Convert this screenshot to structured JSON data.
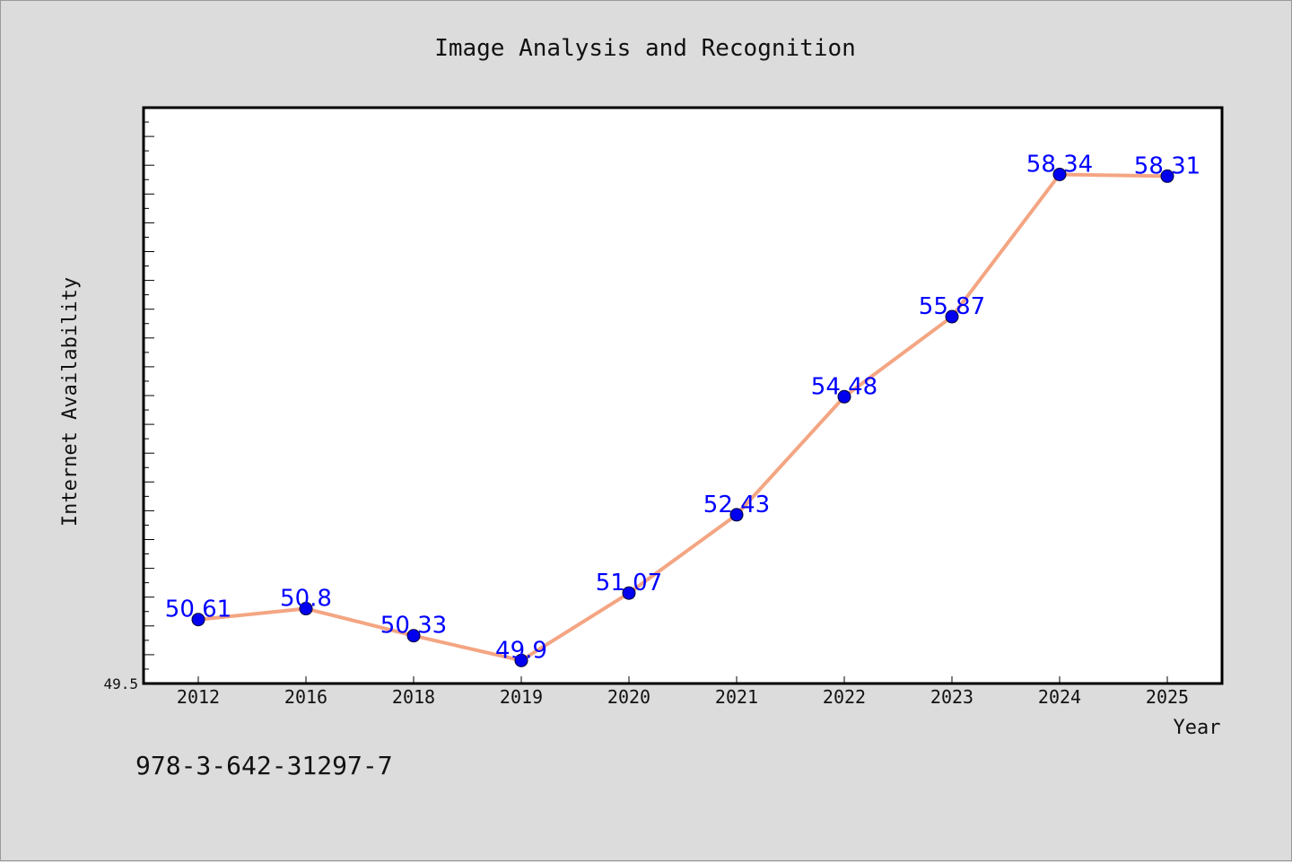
{
  "footnote": "978-3-642-31297-7",
  "chart_data": {
    "type": "line",
    "title": "Image Analysis and Recognition",
    "xlabel": "Year",
    "ylabel": "Internet Availability",
    "categories": [
      "2012",
      "2016",
      "2018",
      "2019",
      "2020",
      "2021",
      "2022",
      "2023",
      "2024",
      "2025"
    ],
    "values": [
      50.61,
      50.8,
      50.33,
      49.9,
      51.07,
      52.43,
      54.48,
      55.87,
      58.34,
      58.31
    ],
    "data_labels": [
      "50.61",
      "50.8",
      "50.33",
      "49.9",
      "51.07",
      "52.43",
      "54.48",
      "55.87",
      "58.34",
      "58.31"
    ],
    "ylim": [
      49.5,
      59.5
    ],
    "ytick_labels": [
      "49.5"
    ],
    "grid": false,
    "line_color": "#f4a582",
    "marker_color": "#0000ee",
    "label_color": "#0000ff"
  }
}
